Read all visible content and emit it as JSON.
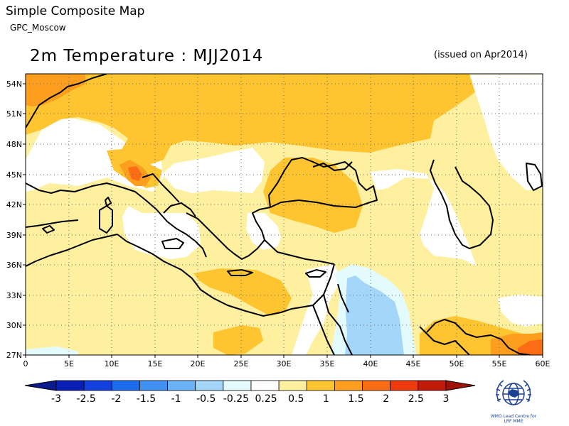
{
  "header": {
    "title": "Simple Composite Map",
    "subtitle": "GPC_Moscow"
  },
  "map": {
    "title": "2m Temperature : MJJ2014",
    "issued": "(issued on Apr2014)",
    "variable": "2m Temperature anomaly",
    "lat_labels": [
      "54N",
      "51N",
      "48N",
      "45N",
      "42N",
      "39N",
      "36N",
      "33N",
      "30N",
      "27N"
    ],
    "lon_labels": [
      "0",
      "5E",
      "10E",
      "15E",
      "20E",
      "25E",
      "30E",
      "35E",
      "40E",
      "45E",
      "50E",
      "55E",
      "60E"
    ],
    "grid": true
  },
  "colorbar": {
    "labels": [
      "-3",
      "-2.5",
      "-2",
      "-1.5",
      "-1",
      "-0.5",
      "-0.25",
      "0.25",
      "0.5",
      "1",
      "1.5",
      "2",
      "2.5",
      "3"
    ],
    "colors": [
      "#0a1fb5",
      "#1241e0",
      "#1c6cf0",
      "#3f90f2",
      "#6ab2f5",
      "#a4d6fa",
      "#e4fbfd",
      "#ffffff",
      "#fff0a0",
      "#fec531",
      "#fe9e1e",
      "#fc6c14",
      "#ee3a0c",
      "#c21a08"
    ]
  },
  "legend_colors": {
    "land_outline": "#000000",
    "slight_warm": "#fff0a0",
    "warm": "#fec531",
    "warmer": "#fe9e1e",
    "hot": "#fc6c14",
    "very_hot": "#ee3a0c",
    "slight_cool": "#e4fbfd",
    "cool": "#a4d6fa"
  },
  "logo": {
    "icon": "wmo-emblem-icon",
    "text_line1": "WMO Lead Centre for",
    "text_line2": "LRF MME"
  }
}
